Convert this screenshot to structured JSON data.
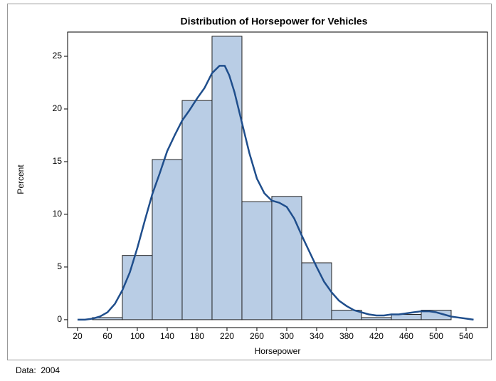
{
  "chart_data": {
    "type": "histogram",
    "title": "Distribution of Horsepower for Vehicles",
    "x_label": "Horsepower",
    "y_label": "Percent",
    "footnote": "Data:  2004",
    "bins": [
      40,
      80,
      120,
      160,
      200,
      240,
      280,
      320,
      360,
      400,
      440,
      480,
      520
    ],
    "values": [
      0.2,
      6.1,
      15.2,
      20.8,
      26.9,
      11.2,
      11.7,
      5.4,
      0.9,
      0.2,
      0.5,
      0.9
    ],
    "color": "#b9cde5",
    "curve": {
      "color": "#1f4e8c",
      "x": [
        20,
        30,
        40,
        50,
        60,
        70,
        80,
        90,
        100,
        110,
        120,
        130,
        140,
        150,
        160,
        170,
        180,
        190,
        200,
        210,
        217,
        223,
        230,
        240,
        250,
        260,
        270,
        280,
        290,
        300,
        310,
        320,
        330,
        340,
        350,
        360,
        370,
        380,
        390,
        400,
        410,
        420,
        430,
        440,
        450,
        460,
        470,
        480,
        490,
        500,
        510,
        520,
        530,
        540,
        550
      ],
      "values": [
        0,
        0,
        0.1,
        0.3,
        0.7,
        1.5,
        2.8,
        4.5,
        6.8,
        9.4,
        11.9,
        13.9,
        16.0,
        17.5,
        18.9,
        19.9,
        21.0,
        22.0,
        23.4,
        24.1,
        24.1,
        23.2,
        21.6,
        18.7,
        15.8,
        13.4,
        12.0,
        11.3,
        11.1,
        10.7,
        9.6,
        8.0,
        6.5,
        5.0,
        3.6,
        2.6,
        1.8,
        1.3,
        0.9,
        0.7,
        0.5,
        0.4,
        0.4,
        0.5,
        0.5,
        0.6,
        0.7,
        0.8,
        0.8,
        0.7,
        0.5,
        0.3,
        0.2,
        0.1,
        0
      ]
    },
    "xlim": [
      6.7,
      568.6
    ],
    "ylim": [
      -0.75,
      27.3
    ],
    "xticks": [
      20,
      60,
      100,
      140,
      180,
      220,
      260,
      300,
      340,
      380,
      420,
      460,
      500,
      540
    ],
    "yticks": [
      0,
      5,
      10,
      15,
      20,
      25
    ]
  }
}
